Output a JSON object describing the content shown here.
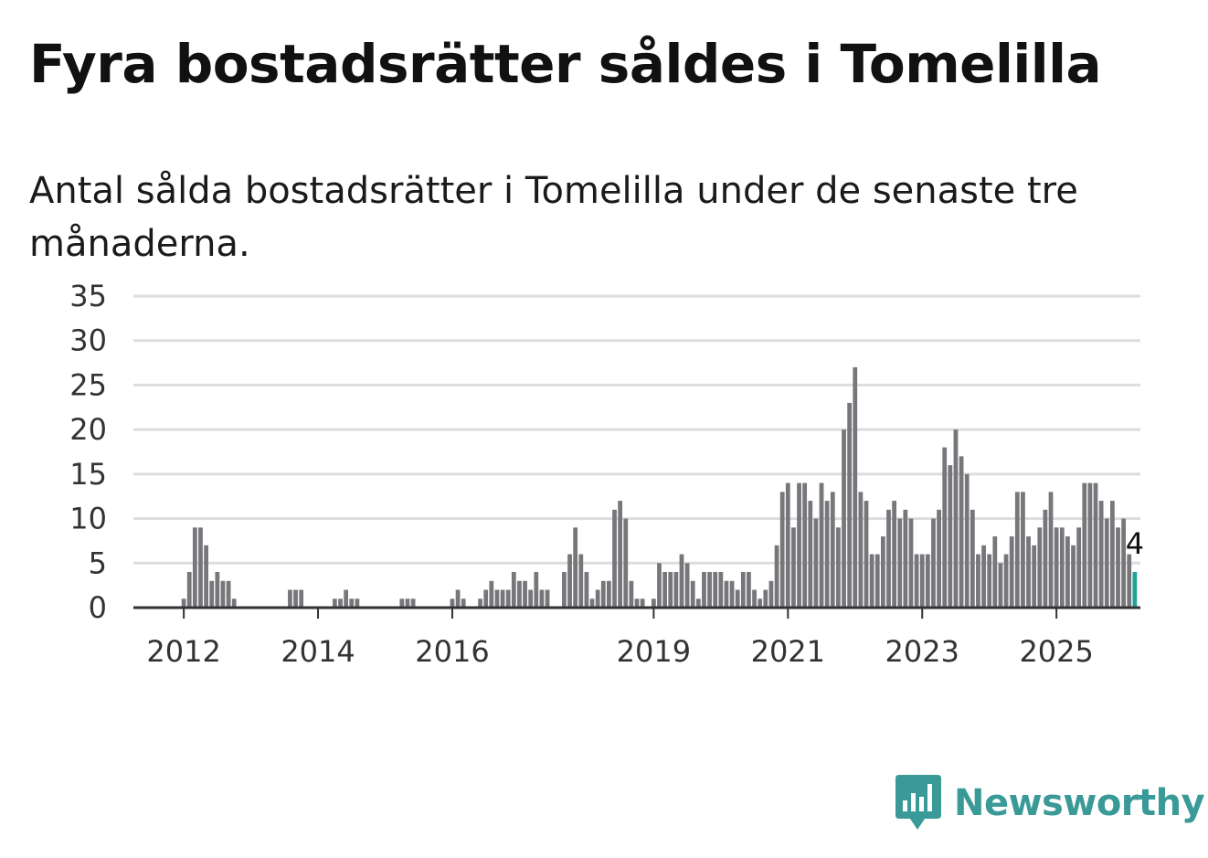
{
  "title": "Fyra bostadsrätter såldes i Tomelilla",
  "subtitle": "Antal sålda bostadsrätter i Tomelilla under de senaste tre månaderna.",
  "brand": {
    "name": "Newsworthy",
    "icon": "newsworthy-chart-bubble-icon",
    "color": "#3a9a97"
  },
  "colors": {
    "bar": "#77777b",
    "highlight": "#1fa39a",
    "grid": "#dddddd",
    "axis": "#333333"
  },
  "chart_data": {
    "type": "bar",
    "title": "Fyra bostadsrätter såldes i Tomelilla",
    "xlabel": "",
    "ylabel": "",
    "ylim": [
      0,
      35
    ],
    "yticks": [
      0,
      5,
      10,
      15,
      20,
      25,
      30,
      35
    ],
    "grid": true,
    "start": "2011-05",
    "end": "2024-12",
    "x_tick_labels": [
      "2012",
      "2014",
      "2016",
      "2019",
      "2021",
      "2023",
      "2025"
    ],
    "highlight_label": "4",
    "series": [
      {
        "values": [
          0,
          0,
          0,
          0,
          0,
          0,
          0,
          0,
          1,
          4,
          9,
          9,
          7,
          3,
          4,
          3,
          3,
          1,
          0,
          0,
          0,
          0,
          0,
          0,
          0,
          0,
          0,
          2,
          2,
          2,
          0,
          0,
          0,
          0,
          0,
          1,
          1,
          2,
          1,
          1,
          0,
          0,
          0,
          0,
          0,
          0,
          0,
          1,
          1,
          1,
          0,
          0,
          0,
          0,
          0,
          0,
          1,
          2,
          1,
          0,
          0,
          1,
          2,
          3,
          2,
          2,
          2,
          4,
          3,
          3,
          2,
          4,
          2,
          2,
          0,
          0,
          4,
          6,
          9,
          6,
          4,
          1,
          2,
          3,
          3,
          11,
          12,
          10,
          3,
          1,
          1,
          0,
          1,
          5,
          4,
          4,
          4,
          6,
          5,
          3,
          1,
          4,
          4,
          4,
          4,
          3,
          3,
          2,
          4,
          4,
          2,
          1,
          2,
          3,
          7,
          13,
          14,
          9,
          14,
          14,
          12,
          10,
          14,
          12,
          13,
          9,
          20,
          23,
          27,
          13,
          12,
          6,
          6,
          8,
          11,
          12,
          10,
          11,
          10,
          6,
          6,
          6,
          10,
          11,
          18,
          16,
          20,
          17,
          15,
          11,
          6,
          7,
          6,
          8,
          5,
          6,
          8,
          13,
          13,
          8,
          7,
          9,
          11,
          13,
          9,
          9,
          8,
          7,
          9,
          14,
          14,
          14,
          12,
          10,
          12,
          9,
          10,
          6,
          4
        ]
      }
    ]
  }
}
